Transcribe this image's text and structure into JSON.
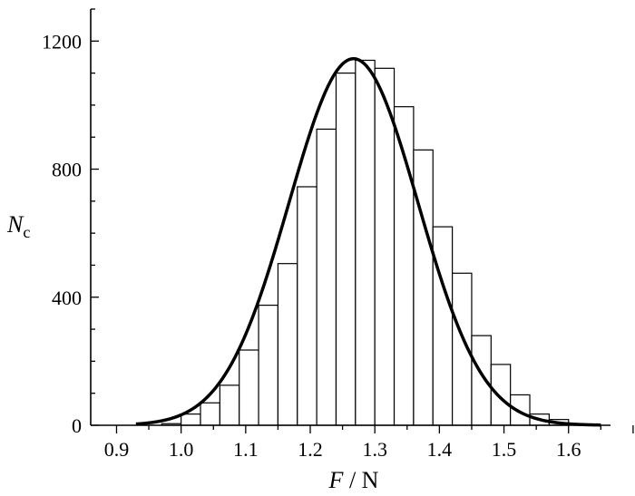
{
  "chart_data": {
    "type": "bar",
    "bar_style": "histogram",
    "xlabel_var": "F",
    "xlabel_sep": " / ",
    "xlabel_unit": "N",
    "ylabel_var": "N",
    "ylabel_sub": "c",
    "xlim": [
      0.86,
      1.665
    ],
    "ylim": [
      0,
      1300
    ],
    "x_ticks": [
      0.9,
      1.0,
      1.1,
      1.2,
      1.3,
      1.4,
      1.5,
      1.6
    ],
    "x_tick_labels": [
      "0.9",
      "1.0",
      "1.1",
      "1.2",
      "1.3",
      "1.4",
      "1.5",
      "1.6"
    ],
    "y_ticks": [
      0,
      400,
      800,
      1200
    ],
    "y_tick_labels": [
      "0",
      "400",
      "800",
      "1200"
    ],
    "bin_width": 0.03,
    "bin_starts": [
      0.97,
      1.0,
      1.03,
      1.06,
      1.09,
      1.12,
      1.15,
      1.18,
      1.21,
      1.24,
      1.27,
      1.3,
      1.33,
      1.36,
      1.39,
      1.42,
      1.45,
      1.48,
      1.51,
      1.54,
      1.57
    ],
    "values": [
      5,
      35,
      70,
      125,
      235,
      375,
      505,
      745,
      925,
      1100,
      1140,
      1115,
      995,
      860,
      620,
      475,
      280,
      190,
      95,
      35,
      18
    ],
    "fit_curve": {
      "type": "gaussian",
      "peak": 1145,
      "mean": 1.267,
      "sigma": 0.1
    },
    "grid": false,
    "legend": "none"
  }
}
